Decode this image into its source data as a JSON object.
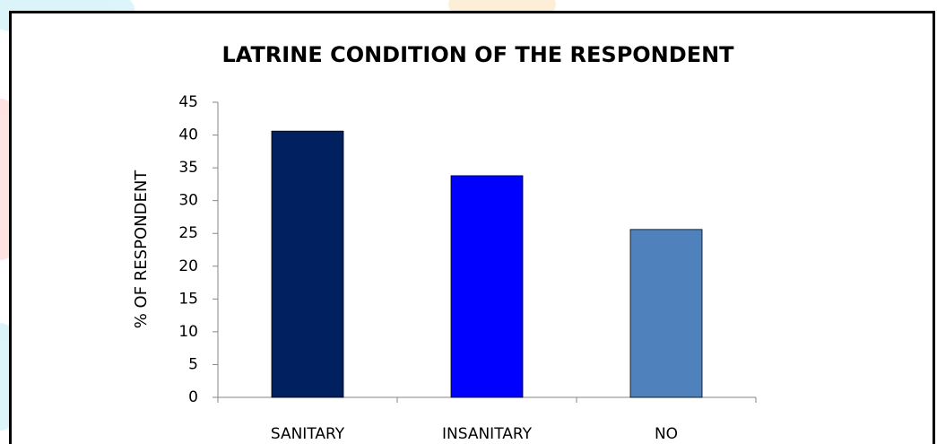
{
  "chart_data": {
    "type": "bar",
    "title": "LATRINE CONDITION OF THE RESPONDENT",
    "y_label": "% OF RESPONDENT",
    "categories": [
      "SANITARY",
      "INSANITARY",
      "NO"
    ],
    "values": [
      40.6,
      33.8,
      25.6
    ],
    "colors": [
      "#002060",
      "#0000ff",
      "#4f81bd"
    ],
    "ylim": [
      0,
      45
    ],
    "yticks": [
      0,
      5,
      10,
      15,
      20,
      25,
      30,
      35,
      40,
      45
    ],
    "grid": false
  }
}
